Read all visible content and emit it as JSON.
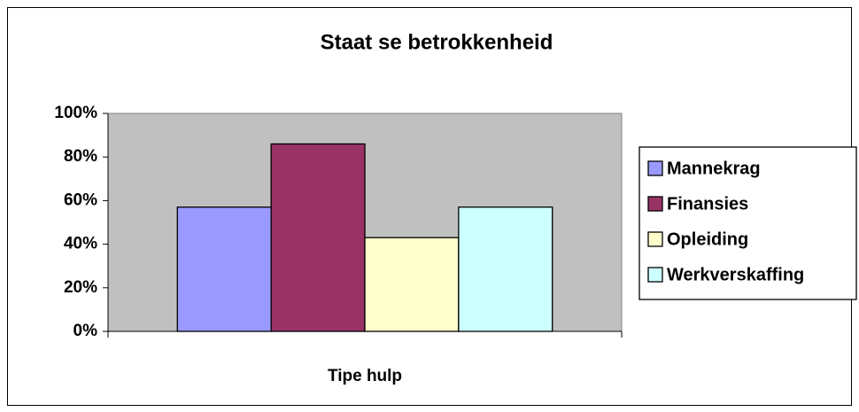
{
  "chart_data": {
    "type": "bar",
    "title": "Staat se betrokkenheid",
    "categories": [
      "Tipe hulp"
    ],
    "series": [
      {
        "name": "Mannekrag",
        "color": "#9999ff",
        "values": [
          57
        ]
      },
      {
        "name": "Finansies",
        "color": "#993366",
        "values": [
          86
        ]
      },
      {
        "name": "Opleiding",
        "color": "#ffffcc",
        "values": [
          43
        ]
      },
      {
        "name": "Werkverskaffing",
        "color": "#ccffff",
        "values": [
          57
        ]
      }
    ],
    "ylim": [
      0,
      100
    ],
    "yticks": [
      {
        "value": 0,
        "label": "0%"
      },
      {
        "value": 20,
        "label": "20%"
      },
      {
        "value": 40,
        "label": "40%"
      },
      {
        "value": 60,
        "label": "60%"
      },
      {
        "value": 80,
        "label": "80%"
      },
      {
        "value": 100,
        "label": "100%"
      }
    ],
    "legend": "right"
  }
}
